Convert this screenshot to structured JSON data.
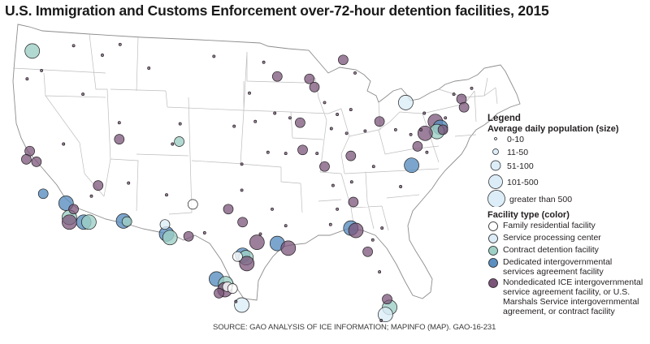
{
  "title": "U.S. Immigration and Customs Enforcement over-72-hour detention facilities, 2015",
  "source": "SOURCE: GAO ANALYSIS OF ICE INFORMATION; MAPINFO (MAP). GAO-16-231",
  "legend": {
    "heading": "Legend",
    "size_title": "Average daily population (size)",
    "sizes": [
      {
        "label": "0-10"
      },
      {
        "label": "11-50"
      },
      {
        "label": "51-100"
      },
      {
        "label": "101-500"
      },
      {
        "label": "greater than 500"
      }
    ],
    "type_title": "Facility type (color)",
    "types": [
      {
        "label": "Family residential facility",
        "color": "#ffffff"
      },
      {
        "label": "Service processing center",
        "color": "#dcedf8"
      },
      {
        "label": "Contract detention facility",
        "color": "#9fd0c6"
      },
      {
        "label": "Dedicated intergovernmental services agreement facility",
        "color": "#5a8fbf"
      },
      {
        "label": "Nondedicated ICE intergovernmental service agreement facility, or U.S. Marshals Service intergovernmental agreement, or contract facility",
        "color": "#7b5479"
      }
    ]
  },
  "facilities": [
    {
      "lon": -122.3,
      "lat": 47.25,
      "size": "101-500",
      "type": "contract"
    },
    {
      "lon": -122.6,
      "lat": 38.8,
      "size": "51-100",
      "type": "nondedicated"
    },
    {
      "lon": -123.0,
      "lat": 38.1,
      "size": "51-100",
      "type": "nondedicated"
    },
    {
      "lon": -121.8,
      "lat": 37.9,
      "size": "51-100",
      "type": "nondedicated"
    },
    {
      "lon": -118.6,
      "lat": 39.4,
      "size": "0-10",
      "type": "nondedicated"
    },
    {
      "lon": -121.0,
      "lat": 35.2,
      "size": "51-100",
      "type": "dedicated"
    },
    {
      "lon": -118.3,
      "lat": 34.4,
      "size": "101-500",
      "type": "dedicated"
    },
    {
      "lon": -117.9,
      "lat": 33.2,
      "size": "101-500",
      "type": "contract"
    },
    {
      "lon": -117.9,
      "lat": 32.8,
      "size": "101-500",
      "type": "nondedicated"
    },
    {
      "lon": -117.4,
      "lat": 33.9,
      "size": "51-100",
      "type": "nondedicated"
    },
    {
      "lon": -116.2,
      "lat": 32.8,
      "size": "101-500",
      "type": "dedicated"
    },
    {
      "lon": -115.6,
      "lat": 32.8,
      "size": "101-500",
      "type": "contract"
    },
    {
      "lon": -111.5,
      "lat": 32.9,
      "size": "101-500",
      "type": "dedicated"
    },
    {
      "lon": -111.1,
      "lat": 32.85,
      "size": "51-100",
      "type": "contract"
    },
    {
      "lon": -114.5,
      "lat": 35.9,
      "size": "51-100",
      "type": "nondedicated"
    },
    {
      "lon": -115.3,
      "lat": 35.0,
      "size": "0-10",
      "type": "nondedicated"
    },
    {
      "lon": -112.0,
      "lat": 39.8,
      "size": "51-100",
      "type": "nondedicated"
    },
    {
      "lon": -104.9,
      "lat": 39.6,
      "size": "51-100",
      "type": "contract"
    },
    {
      "lon": -105.7,
      "lat": 39.4,
      "size": "0-10",
      "type": "nondedicated"
    },
    {
      "lon": -106.4,
      "lat": 31.8,
      "size": "101-500",
      "type": "dedicated"
    },
    {
      "lon": -106.0,
      "lat": 31.5,
      "size": "101-500",
      "type": "contract"
    },
    {
      "lon": -106.6,
      "lat": 32.6,
      "size": "51-100",
      "type": "service"
    },
    {
      "lon": -103.3,
      "lat": 34.3,
      "size": "51-100",
      "type": "family"
    },
    {
      "lon": -103.8,
      "lat": 31.6,
      "size": "51-100",
      "type": "nondedicated"
    },
    {
      "lon": -101.9,
      "lat": 31.9,
      "size": "0-10",
      "type": "nondedicated"
    },
    {
      "lon": -97.4,
      "lat": 32.8,
      "size": "51-100",
      "type": "nondedicated"
    },
    {
      "lon": -99.1,
      "lat": 33.9,
      "size": "51-100",
      "type": "nondedicated"
    },
    {
      "lon": -95.7,
      "lat": 31.1,
      "size": "101-500",
      "type": "nondedicated"
    },
    {
      "lon": -98.0,
      "lat": 29.9,
      "size": "51-100",
      "type": "family"
    },
    {
      "lon": -97.4,
      "lat": 30.0,
      "size": "101-500",
      "type": "dedicated"
    },
    {
      "lon": -97.0,
      "lat": 29.8,
      "size": "101-500",
      "type": "contract"
    },
    {
      "lon": -96.9,
      "lat": 29.3,
      "size": "101-500",
      "type": "nondedicated"
    },
    {
      "lon": -100.5,
      "lat": 28.0,
      "size": "101-500",
      "type": "dedicated"
    },
    {
      "lon": -99.4,
      "lat": 27.6,
      "size": "101-500",
      "type": "contract"
    },
    {
      "lon": -99.5,
      "lat": 27.1,
      "size": "101-500",
      "type": "nondedicated"
    },
    {
      "lon": -99.2,
      "lat": 27.35,
      "size": "51-100",
      "type": "family"
    },
    {
      "lon": -98.6,
      "lat": 27.2,
      "size": "51-100",
      "type": "family"
    },
    {
      "lon": -100.2,
      "lat": 26.8,
      "size": "51-100",
      "type": "nondedicated"
    },
    {
      "lon": -97.5,
      "lat": 25.8,
      "size": "101-500",
      "type": "service"
    },
    {
      "lon": -98.2,
      "lat": 26.1,
      "size": "0-10",
      "type": "nondedicated"
    },
    {
      "lon": -95.3,
      "lat": 31.8,
      "size": "0-10",
      "type": "nondedicated"
    },
    {
      "lon": -93.3,
      "lat": 31.0,
      "size": "101-500",
      "type": "dedicated"
    },
    {
      "lon": -92.0,
      "lat": 30.6,
      "size": "101-500",
      "type": "nondedicated"
    },
    {
      "lon": -92.3,
      "lat": 32.5,
      "size": "0-10",
      "type": "nondedicated"
    },
    {
      "lon": -93.9,
      "lat": 33.9,
      "size": "0-10",
      "type": "nondedicated"
    },
    {
      "lon": -84.6,
      "lat": 32.3,
      "size": "101-500",
      "type": "dedicated"
    },
    {
      "lon": -84.0,
      "lat": 32.1,
      "size": "101-500",
      "type": "nondedicated"
    },
    {
      "lon": -86.2,
      "lat": 33.9,
      "size": "0-10",
      "type": "nondedicated"
    },
    {
      "lon": -87.0,
      "lat": 32.6,
      "size": "0-10",
      "type": "nondedicated"
    },
    {
      "lon": -84.3,
      "lat": 34.5,
      "size": "51-100",
      "type": "nondedicated"
    },
    {
      "lon": -82.6,
      "lat": 30.3,
      "size": "51-100",
      "type": "nondedicated"
    },
    {
      "lon": -80.9,
      "lat": 32.3,
      "size": "0-10",
      "type": "nondedicated"
    },
    {
      "lon": -82.0,
      "lat": 31.3,
      "size": "0-10",
      "type": "nondedicated"
    },
    {
      "lon": -81.2,
      "lat": 28.6,
      "size": "0-10",
      "type": "nondedicated"
    },
    {
      "lon": -80.3,
      "lat": 26.3,
      "size": "51-100",
      "type": "nondedicated"
    },
    {
      "lon": -80.0,
      "lat": 25.6,
      "size": "101-500",
      "type": "contract"
    },
    {
      "lon": -80.5,
      "lat": 25.0,
      "size": "101-500",
      "type": "service"
    },
    {
      "lon": -81.0,
      "lat": 24.5,
      "size": "0-10",
      "type": "nondedicated"
    },
    {
      "lon": -93.3,
      "lat": 45.1,
      "size": "51-100",
      "type": "nondedicated"
    },
    {
      "lon": -96.6,
      "lat": 43.7,
      "size": "0-10",
      "type": "nondedicated"
    },
    {
      "lon": -94.9,
      "lat": 46.3,
      "size": "0-10",
      "type": "nondedicated"
    },
    {
      "lon": -89.5,
      "lat": 44.9,
      "size": "51-100",
      "type": "nondedicated"
    },
    {
      "lon": -88.9,
      "lat": 44.2,
      "size": "51-100",
      "type": "nondedicated"
    },
    {
      "lon": -87.7,
      "lat": 42.9,
      "size": "0-10",
      "type": "nondedicated"
    },
    {
      "lon": -85.5,
      "lat": 46.5,
      "size": "51-100",
      "type": "nondedicated"
    },
    {
      "lon": -84.1,
      "lat": 45.4,
      "size": "0-10",
      "type": "nondedicated"
    },
    {
      "lon": -86.2,
      "lat": 41.9,
      "size": "0-10",
      "type": "nondedicated"
    },
    {
      "lon": -84.6,
      "lat": 42.3,
      "size": "0-10",
      "type": "nondedicated"
    },
    {
      "lon": -93.6,
      "lat": 42.0,
      "size": "0-10",
      "type": "nondedicated"
    },
    {
      "lon": -91.8,
      "lat": 41.6,
      "size": "0-10",
      "type": "nondedicated"
    },
    {
      "lon": -90.6,
      "lat": 41.2,
      "size": "51-100",
      "type": "nondedicated"
    },
    {
      "lon": -90.3,
      "lat": 38.9,
      "size": "51-100",
      "type": "nondedicated"
    },
    {
      "lon": -92.3,
      "lat": 38.6,
      "size": "0-10",
      "type": "nondedicated"
    },
    {
      "lon": -94.4,
      "lat": 38.7,
      "size": "0-10",
      "type": "nondedicated"
    },
    {
      "lon": -88.6,
      "lat": 38.6,
      "size": "0-10",
      "type": "nondedicated"
    },
    {
      "lon": -86.9,
      "lat": 40.7,
      "size": "0-10",
      "type": "nondedicated"
    },
    {
      "lon": -85.1,
      "lat": 40.3,
      "size": "0-10",
      "type": "nondedicated"
    },
    {
      "lon": -87.7,
      "lat": 37.5,
      "size": "51-100",
      "type": "nondedicated"
    },
    {
      "lon": -84.6,
      "lat": 38.4,
      "size": "51-100",
      "type": "nondedicated"
    },
    {
      "lon": -86.7,
      "lat": 35.9,
      "size": "0-10",
      "type": "nondedicated"
    },
    {
      "lon": -84.5,
      "lat": 36.2,
      "size": "0-10",
      "type": "nondedicated"
    },
    {
      "lon": -81.9,
      "lat": 37.5,
      "size": "0-10",
      "type": "nondedicated"
    },
    {
      "lon": -82.9,
      "lat": 40.5,
      "size": "0-10",
      "type": "nondedicated"
    },
    {
      "lon": -81.2,
      "lat": 41.3,
      "size": "51-100",
      "type": "nondedicated"
    },
    {
      "lon": -78.1,
      "lat": 42.9,
      "size": "101-500",
      "type": "service"
    },
    {
      "lon": -75.9,
      "lat": 42.0,
      "size": "0-10",
      "type": "nondedicated"
    },
    {
      "lon": -74.6,
      "lat": 41.3,
      "size": "101-500",
      "type": "nondedicated"
    },
    {
      "lon": -74.0,
      "lat": 40.8,
      "size": "101-500",
      "type": "dedicated"
    },
    {
      "lon": -73.7,
      "lat": 40.6,
      "size": "51-100",
      "type": "nondedicated"
    },
    {
      "lon": -74.4,
      "lat": 40.45,
      "size": "101-500",
      "type": "contract"
    },
    {
      "lon": -73.4,
      "lat": 41.6,
      "size": "0-10",
      "type": "nondedicated"
    },
    {
      "lon": -71.5,
      "lat": 43.2,
      "size": "51-100",
      "type": "nondedicated"
    },
    {
      "lon": -71.2,
      "lat": 42.5,
      "size": "51-100",
      "type": "nondedicated"
    },
    {
      "lon": -70.3,
      "lat": 44.1,
      "size": "0-10",
      "type": "nondedicated"
    },
    {
      "lon": -72.4,
      "lat": 43.6,
      "size": "0-10",
      "type": "nondedicated"
    },
    {
      "lon": -75.8,
      "lat": 40.3,
      "size": "101-500",
      "type": "nondedicated"
    },
    {
      "lon": -76.3,
      "lat": 40.6,
      "size": "0-10",
      "type": "nondedicated"
    },
    {
      "lon": -77.5,
      "lat": 40.2,
      "size": "0-10",
      "type": "nondedicated"
    },
    {
      "lon": -79.3,
      "lat": 40.6,
      "size": "0-10",
      "type": "nondedicated"
    },
    {
      "lon": -76.7,
      "lat": 39.2,
      "size": "51-100",
      "type": "nondedicated"
    },
    {
      "lon": -77.4,
      "lat": 37.6,
      "size": "101-500",
      "type": "dedicated"
    },
    {
      "lon": -75.6,
      "lat": 38.7,
      "size": "0-10",
      "type": "nondedicated"
    },
    {
      "lon": -78.7,
      "lat": 35.8,
      "size": "0-10",
      "type": "nondedicated"
    },
    {
      "lon": -122.9,
      "lat": 44.9,
      "size": "0-10",
      "type": "nondedicated"
    },
    {
      "lon": -121.2,
      "lat": 45.6,
      "size": "0-10",
      "type": "nondedicated"
    },
    {
      "lon": -117.4,
      "lat": 47.7,
      "size": "0-10",
      "type": "nondedicated"
    },
    {
      "lon": -116.3,
      "lat": 43.6,
      "size": "0-10",
      "type": "nondedicated"
    },
    {
      "lon": -114.0,
      "lat": 46.9,
      "size": "0-10",
      "type": "nondedicated"
    },
    {
      "lon": -111.9,
      "lat": 47.8,
      "size": "0-10",
      "type": "nondedicated"
    },
    {
      "lon": -108.5,
      "lat": 45.8,
      "size": "0-10",
      "type": "nondedicated"
    },
    {
      "lon": -104.8,
      "lat": 41.1,
      "size": "0-10",
      "type": "nondedicated"
    },
    {
      "lon": -100.8,
      "lat": 46.8,
      "size": "0-10",
      "type": "nondedicated"
    },
    {
      "lon": -98.4,
      "lat": 40.9,
      "size": "0-10",
      "type": "nondedicated"
    },
    {
      "lon": -95.9,
      "lat": 41.3,
      "size": "0-10",
      "type": "nondedicated"
    },
    {
      "lon": -97.5,
      "lat": 37.7,
      "size": "0-10",
      "type": "nondedicated"
    },
    {
      "lon": -97.5,
      "lat": 35.5,
      "size": "0-10",
      "type": "nondedicated"
    },
    {
      "lon": -112.0,
      "lat": 41.2,
      "size": "0-10",
      "type": "nondedicated"
    },
    {
      "lon": -110.9,
      "lat": 36.1,
      "size": "0-10",
      "type": "nondedicated"
    },
    {
      "lon": -106.4,
      "lat": 35.1,
      "size": "0-10",
      "type": "nondedicated"
    }
  ]
}
